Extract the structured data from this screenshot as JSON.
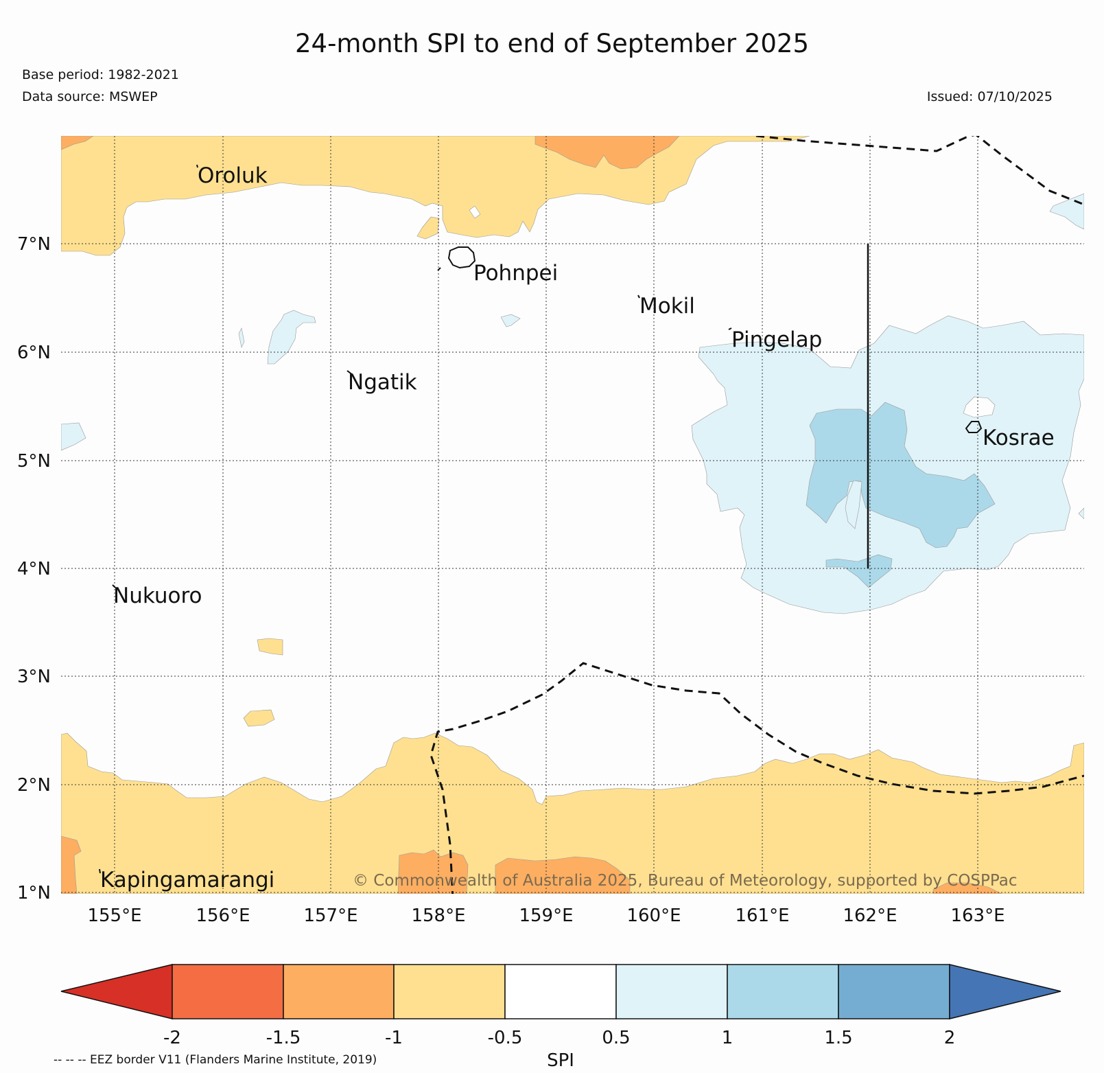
{
  "header": {
    "title": "24-month SPI to end of September 2025",
    "base_period": "Base period: 1982-2021",
    "data_source": "Data source: MSWEP",
    "issued": "Issued: 07/10/2025"
  },
  "map": {
    "latitude_labels": [
      "7°N",
      "6°N",
      "5°N",
      "4°N",
      "3°N",
      "2°N",
      "1°N"
    ],
    "longitude_labels": [
      "155°E",
      "156°E",
      "157°E",
      "158°E",
      "159°E",
      "160°E",
      "161°E",
      "162°E",
      "163°E"
    ],
    "places": {
      "oroluk": "Oroluk",
      "pohnpei": "Pohnpei",
      "mokil": "Mokil",
      "pingelap": "Pingelap",
      "ngatik": "Ngatik",
      "kosrae": "Kosrae",
      "nukuoro": "Nukuoro",
      "kapingamarangi": "Kapingamarangi"
    },
    "credit": "© Commonwealth of Australia 2025, Bureau of Meteorology, supported by COSPPac",
    "colors": {
      "very_dry": "#d73027",
      "dry_2": "#f46d43",
      "dry_1": "#fdae61",
      "dry_05": "#fee090",
      "neutral": "#ffffff",
      "wet_05": "#e0f3f8",
      "wet_1": "#abd9e9",
      "wet_15": "#74add1",
      "very_wet": "#4575b4"
    }
  },
  "colorbar": {
    "label": "SPI",
    "tick_labels": [
      "-2",
      "-1.5",
      "-1",
      "-0.5",
      "0.5",
      "1",
      "1.5",
      "2"
    ]
  },
  "footnote": "-- -- -- EEZ border V11 (Flanders Marine Institute, 2019)"
}
